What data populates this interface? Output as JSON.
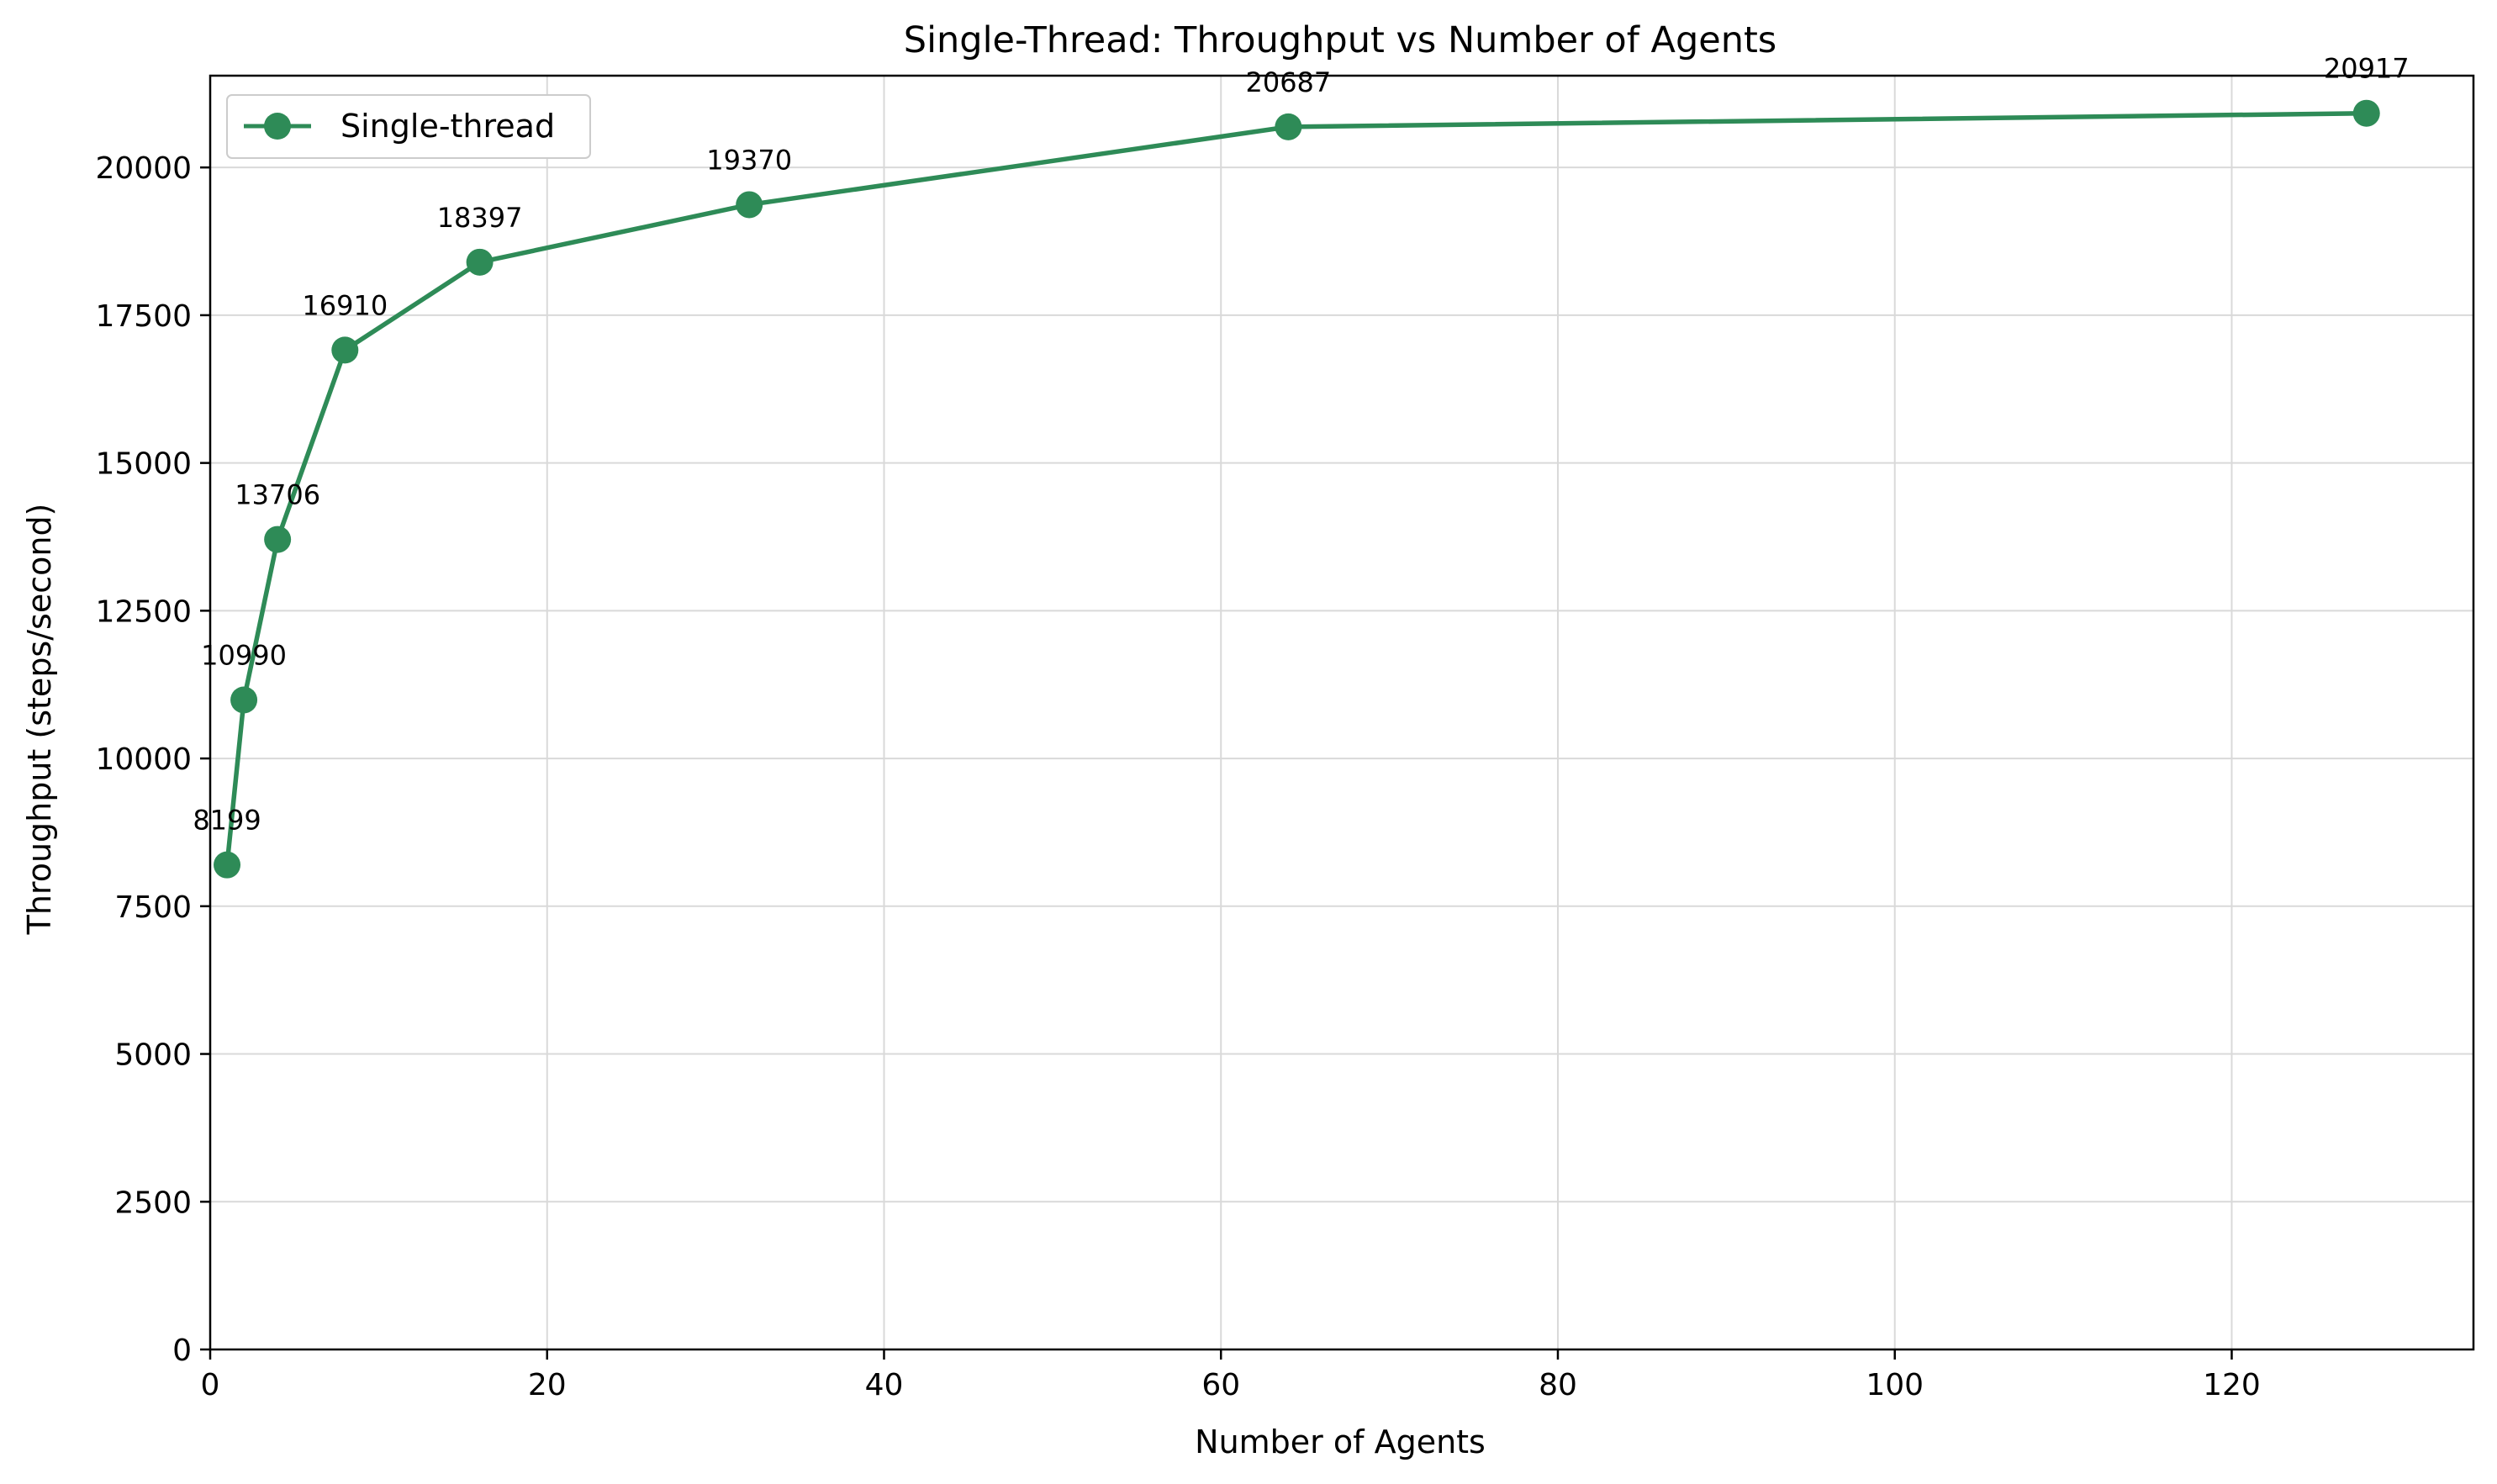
{
  "colors": {
    "series": "#2e8b57",
    "grid": "#d9d9d9",
    "axis": "#000000",
    "legend_border": "#cccccc"
  },
  "chart_data": {
    "type": "line",
    "title": "Single-Thread: Throughput vs Number of Agents",
    "xlabel": "Number of Agents",
    "ylabel": "Throughput (steps/second)",
    "xlim": [
      0,
      134.35
    ],
    "ylim": [
      0,
      21553
    ],
    "xticks": [
      0,
      20,
      40,
      60,
      80,
      100,
      120
    ],
    "yticks": [
      0,
      2500,
      5000,
      7500,
      10000,
      12500,
      15000,
      17500,
      20000
    ],
    "grid": true,
    "legend_position": "top-left",
    "series": [
      {
        "name": "Single-thread",
        "marker": "circle",
        "x": [
          1,
          2,
          4,
          8,
          16,
          32,
          64,
          128
        ],
        "y": [
          8199,
          10990,
          13706,
          16910,
          18397,
          19370,
          20687,
          20917
        ],
        "labels": [
          "8199",
          "10990",
          "13706",
          "16910",
          "18397",
          "19370",
          "20687",
          "20917"
        ]
      }
    ]
  }
}
